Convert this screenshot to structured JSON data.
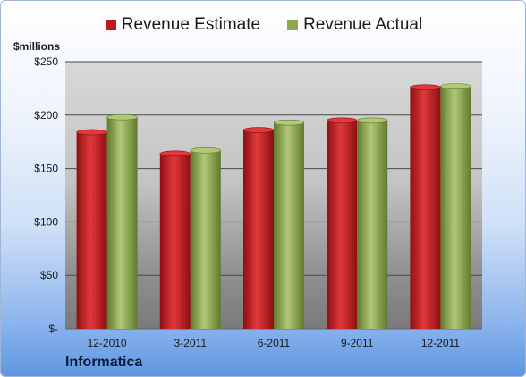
{
  "chart_data": {
    "type": "bar",
    "categories": [
      "12-2010",
      "3-2011",
      "6-2011",
      "9-2011",
      "12-2011"
    ],
    "series": [
      {
        "name": "Revenue Estimate",
        "values": [
          184,
          164,
          186,
          195,
          226
        ],
        "color": "#c0181c"
      },
      {
        "name": "Revenue Actual",
        "values": [
          198,
          167,
          193,
          195,
          227
        ],
        "color": "#8faa4e"
      }
    ],
    "ylabel": "$millions",
    "ylim": [
      0,
      250
    ],
    "yticks": [
      0,
      50,
      100,
      150,
      200,
      250
    ],
    "ytick_labels": [
      "$-",
      "$50",
      "$100",
      "$150",
      "$200",
      "$250"
    ],
    "grid": true,
    "legend": "top-center",
    "footer": "Informatica"
  }
}
